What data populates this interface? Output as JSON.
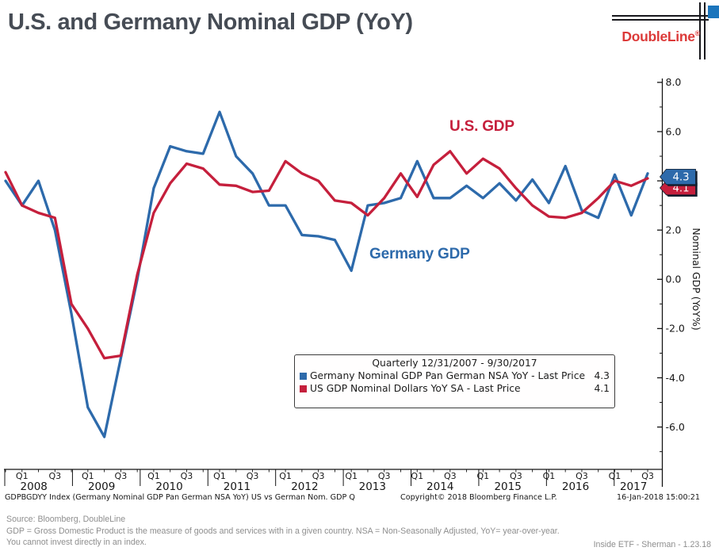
{
  "header": {
    "title": "U.S. and Germany Nominal GDP (YoY)",
    "logo_text": "DoubleLine",
    "logo_reg": "®",
    "logo_colors": {
      "red": "#dc3a39",
      "blue_square": "#1b75bc",
      "line": "#17171c"
    }
  },
  "chart_data": {
    "type": "line",
    "title": "U.S. and Germany Nominal GDP (YoY)",
    "frequency_note": "Quarterly 12/31/2007 - 9/30/2017",
    "grid": false,
    "ylabel": "Nominal GDP (YoY%)",
    "ylim": [
      -7.8,
      8.2
    ],
    "yticks": {
      "values": [
        8,
        6,
        4,
        2,
        0,
        -2,
        -4,
        -6
      ],
      "labels": [
        "8.0",
        "6.0",
        "4.0",
        "2.0",
        "0.0",
        "-2.0",
        "-4.0",
        "-6.0"
      ]
    },
    "xticks": {
      "years": [
        "2008",
        "2009",
        "2010",
        "2011",
        "2012",
        "2013",
        "2014",
        "2015",
        "2016",
        "2017"
      ],
      "quarter_labels": [
        "Q1",
        "Q3"
      ]
    },
    "x": [
      "2007Q4",
      "2008Q1",
      "2008Q2",
      "2008Q3",
      "2008Q4",
      "2009Q1",
      "2009Q2",
      "2009Q3",
      "2009Q4",
      "2010Q1",
      "2010Q2",
      "2010Q3",
      "2010Q4",
      "2011Q1",
      "2011Q2",
      "2011Q3",
      "2011Q4",
      "2012Q1",
      "2012Q2",
      "2012Q3",
      "2012Q4",
      "2013Q1",
      "2013Q2",
      "2013Q3",
      "2013Q4",
      "2014Q1",
      "2014Q2",
      "2014Q3",
      "2014Q4",
      "2015Q1",
      "2015Q2",
      "2015Q3",
      "2015Q4",
      "2016Q1",
      "2016Q2",
      "2016Q3",
      "2016Q4",
      "2017Q1",
      "2017Q2",
      "2017Q3"
    ],
    "series": [
      {
        "name": "Germany Nominal GDP Pan German NSA YoY",
        "color": "#2d6aab",
        "last_price": "4.3",
        "values": [
          4.0,
          3.0,
          4.0,
          2.0,
          -1.4,
          -5.2,
          -6.4,
          -3.2,
          0.0,
          3.7,
          5.4,
          5.2,
          5.1,
          6.8,
          5.0,
          4.3,
          3.0,
          3.0,
          1.8,
          1.75,
          1.6,
          0.35,
          3.0,
          3.1,
          3.3,
          4.8,
          3.3,
          3.3,
          3.8,
          3.3,
          3.9,
          3.2,
          4.05,
          3.1,
          4.6,
          2.8,
          2.5,
          4.25,
          2.6,
          4.3
        ]
      },
      {
        "name": "US GDP Nominal Dollars YoY SA",
        "color": "#c51f3c",
        "last_price": "4.1",
        "values": [
          4.35,
          3.0,
          2.7,
          2.5,
          -1.0,
          -2.0,
          -3.2,
          -3.1,
          0.2,
          2.7,
          3.9,
          4.7,
          4.5,
          3.85,
          3.8,
          3.55,
          3.6,
          4.8,
          4.3,
          4.0,
          3.2,
          3.1,
          2.6,
          3.3,
          4.3,
          3.35,
          4.65,
          5.2,
          4.3,
          4.9,
          4.5,
          3.7,
          3.0,
          2.55,
          2.5,
          2.7,
          3.3,
          4.0,
          3.8,
          4.1
        ]
      }
    ],
    "annotations": [
      {
        "text": "U.S. GDP",
        "color": "#c51f3c"
      },
      {
        "text": "Germany GDP",
        "color": "#2d6aab"
      }
    ],
    "last_price_tags": [
      {
        "label": "4.3",
        "fill": "#2d6aab",
        "text_color": "#ffffff"
      },
      {
        "label": "4.1",
        "fill": "#c51f3c",
        "text_color": "#ffffff"
      }
    ]
  },
  "legend": {
    "title": "Quarterly 12/31/2007 - 9/30/2017",
    "entries": [
      {
        "label": "Germany Nominal GDP Pan German NSA YoY - Last Price",
        "value": "4.3",
        "color": "#2d6aab"
      },
      {
        "label": "US GDP Nominal Dollars YoY SA - Last Price",
        "value": "4.1",
        "color": "#c51f3c"
      }
    ]
  },
  "bloomberg_footer": {
    "left": "GDPBGDYY Index (Germany Nominal GDP Pan German NSA YoY) US vs German Nom. GDP  Q",
    "center": "Copyright© 2018 Bloomberg Finance L.P.",
    "right": "16-Jan-2018 15:00:21"
  },
  "source_block": {
    "line1": "Source:  Bloomberg, DoubleLine",
    "line2": "GDP = Gross Domestic Product is the measure of goods and services with in a given country. NSA = Non-Seasonally Adjusted, YoY= year-over-year.",
    "line3": "You cannot invest directly in an index."
  },
  "page_footer": "Inside ETF - Sherman - 1.23.18"
}
